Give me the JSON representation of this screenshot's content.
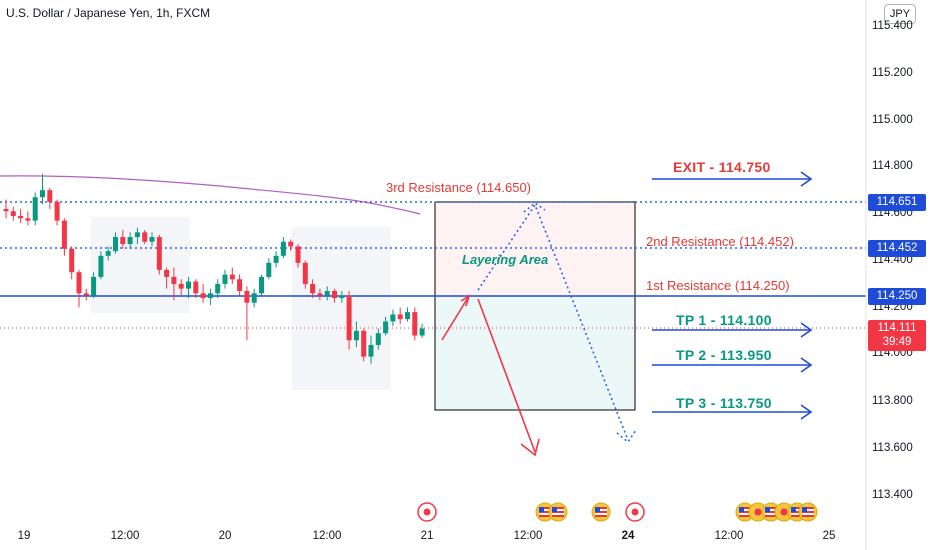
{
  "header": {
    "title": "U.S. Dollar / Japanese Yen, 1h, FXCM",
    "currency": "JPY"
  },
  "y_axis": {
    "labels": [
      "115.400",
      "115.200",
      "115.000",
      "114.800",
      "114.600",
      "114.400",
      "114.200",
      "114.000",
      "113.800",
      "113.600",
      "113.400"
    ]
  },
  "x_axis": {
    "labels": [
      {
        "text": "19",
        "bold": false
      },
      {
        "text": "12:00",
        "bold": false
      },
      {
        "text": "20",
        "bold": false
      },
      {
        "text": "12:00",
        "bold": false
      },
      {
        "text": "21",
        "bold": false
      },
      {
        "text": "12:00",
        "bold": false
      },
      {
        "text": "24",
        "bold": true
      },
      {
        "text": "12:00",
        "bold": false
      },
      {
        "text": "25",
        "bold": false
      }
    ]
  },
  "price_labels": {
    "r3": "114.651",
    "r2": "114.452",
    "r1": "114.250",
    "current": "114.111",
    "countdown": "39:49"
  },
  "annotations": {
    "exit": "EXIT - 114.750",
    "res3": "3rd Resistance (114.650)",
    "res2": "2nd Resistance (114.452)",
    "res1": "1st Resistance (114.250)",
    "layering": "Layering Area",
    "tp1": "TP 1 - 114.100",
    "tp2": "TP 2 - 113.950",
    "tp3": "TP 3 - 113.750"
  },
  "colors": {
    "up": "#089981",
    "down": "#f23645",
    "ma": "#9c27b0",
    "line": "#2962ff",
    "price": "#f23645"
  },
  "chart_data": {
    "type": "candlestick",
    "title": "U.S. Dollar / Japanese Yen, 1h, FXCM",
    "ylim": [
      113.3,
      115.45
    ],
    "levels": {
      "res3": 114.65,
      "res2": 114.452,
      "res1": 114.25,
      "current": 114.111,
      "exit": 114.75,
      "tp1": 114.1,
      "tp2": 113.95,
      "tp3": 113.75
    },
    "candles": [
      {
        "o": 114.62,
        "h": 114.66,
        "l": 114.58,
        "c": 114.61
      },
      {
        "o": 114.61,
        "h": 114.63,
        "l": 114.57,
        "c": 114.59
      },
      {
        "o": 114.59,
        "h": 114.62,
        "l": 114.56,
        "c": 114.58
      },
      {
        "o": 114.58,
        "h": 114.61,
        "l": 114.55,
        "c": 114.57
      },
      {
        "o": 114.57,
        "h": 114.69,
        "l": 114.55,
        "c": 114.67
      },
      {
        "o": 114.67,
        "h": 114.77,
        "l": 114.64,
        "c": 114.7
      },
      {
        "o": 114.7,
        "h": 114.71,
        "l": 114.62,
        "c": 114.65
      },
      {
        "o": 114.65,
        "h": 114.66,
        "l": 114.55,
        "c": 114.57
      },
      {
        "o": 114.57,
        "h": 114.58,
        "l": 114.42,
        "c": 114.45
      },
      {
        "o": 114.45,
        "h": 114.46,
        "l": 114.32,
        "c": 114.35
      },
      {
        "o": 114.35,
        "h": 114.36,
        "l": 114.2,
        "c": 114.26
      },
      {
        "o": 114.26,
        "h": 114.28,
        "l": 114.23,
        "c": 114.25
      },
      {
        "o": 114.25,
        "h": 114.35,
        "l": 114.24,
        "c": 114.33
      },
      {
        "o": 114.33,
        "h": 114.44,
        "l": 114.32,
        "c": 114.42
      },
      {
        "o": 114.42,
        "h": 114.46,
        "l": 114.4,
        "c": 114.44
      },
      {
        "o": 114.44,
        "h": 114.52,
        "l": 114.43,
        "c": 114.5
      },
      {
        "o": 114.5,
        "h": 114.53,
        "l": 114.45,
        "c": 114.47
      },
      {
        "o": 114.47,
        "h": 114.52,
        "l": 114.45,
        "c": 114.5
      },
      {
        "o": 114.5,
        "h": 114.54,
        "l": 114.47,
        "c": 114.52
      },
      {
        "o": 114.52,
        "h": 114.53,
        "l": 114.47,
        "c": 114.48
      },
      {
        "o": 114.48,
        "h": 114.52,
        "l": 114.46,
        "c": 114.5
      },
      {
        "o": 114.5,
        "h": 114.51,
        "l": 114.34,
        "c": 114.36
      },
      {
        "o": 114.36,
        "h": 114.37,
        "l": 114.28,
        "c": 114.33
      },
      {
        "o": 114.33,
        "h": 114.37,
        "l": 114.23,
        "c": 114.3
      },
      {
        "o": 114.3,
        "h": 114.32,
        "l": 114.25,
        "c": 114.28
      },
      {
        "o": 114.28,
        "h": 114.33,
        "l": 114.24,
        "c": 114.31
      },
      {
        "o": 114.31,
        "h": 114.32,
        "l": 114.24,
        "c": 114.26
      },
      {
        "o": 114.26,
        "h": 114.3,
        "l": 114.22,
        "c": 114.24
      },
      {
        "o": 114.24,
        "h": 114.28,
        "l": 114.21,
        "c": 114.26
      },
      {
        "o": 114.26,
        "h": 114.32,
        "l": 114.24,
        "c": 114.3
      },
      {
        "o": 114.3,
        "h": 114.36,
        "l": 114.28,
        "c": 114.34
      },
      {
        "o": 114.34,
        "h": 114.37,
        "l": 114.3,
        "c": 114.32
      },
      {
        "o": 114.32,
        "h": 114.34,
        "l": 114.25,
        "c": 114.27
      },
      {
        "o": 114.27,
        "h": 114.29,
        "l": 114.06,
        "c": 114.22
      },
      {
        "o": 114.22,
        "h": 114.28,
        "l": 114.2,
        "c": 114.26
      },
      {
        "o": 114.26,
        "h": 114.34,
        "l": 114.25,
        "c": 114.33
      },
      {
        "o": 114.33,
        "h": 114.41,
        "l": 114.32,
        "c": 114.39
      },
      {
        "o": 114.39,
        "h": 114.44,
        "l": 114.37,
        "c": 114.42
      },
      {
        "o": 114.42,
        "h": 114.5,
        "l": 114.41,
        "c": 114.48
      },
      {
        "o": 114.48,
        "h": 114.49,
        "l": 114.44,
        "c": 114.46
      },
      {
        "o": 114.46,
        "h": 114.47,
        "l": 114.37,
        "c": 114.39
      },
      {
        "o": 114.39,
        "h": 114.4,
        "l": 114.28,
        "c": 114.3
      },
      {
        "o": 114.3,
        "h": 114.32,
        "l": 114.24,
        "c": 114.26
      },
      {
        "o": 114.26,
        "h": 114.28,
        "l": 114.23,
        "c": 114.25
      },
      {
        "o": 114.25,
        "h": 114.29,
        "l": 114.23,
        "c": 114.27
      },
      {
        "o": 114.27,
        "h": 114.28,
        "l": 114.22,
        "c": 114.24
      },
      {
        "o": 114.24,
        "h": 114.27,
        "l": 114.22,
        "c": 114.25
      },
      {
        "o": 114.25,
        "h": 114.27,
        "l": 114.02,
        "c": 114.06
      },
      {
        "o": 114.06,
        "h": 114.14,
        "l": 114.03,
        "c": 114.1
      },
      {
        "o": 114.1,
        "h": 114.11,
        "l": 113.97,
        "c": 113.99
      },
      {
        "o": 113.99,
        "h": 114.08,
        "l": 113.96,
        "c": 114.04
      },
      {
        "o": 114.04,
        "h": 114.11,
        "l": 114.02,
        "c": 114.09
      },
      {
        "o": 114.09,
        "h": 114.16,
        "l": 114.08,
        "c": 114.14
      },
      {
        "o": 114.14,
        "h": 114.19,
        "l": 114.12,
        "c": 114.17
      },
      {
        "o": 114.17,
        "h": 114.2,
        "l": 114.13,
        "c": 114.15
      },
      {
        "o": 114.15,
        "h": 114.2,
        "l": 114.14,
        "c": 114.18
      },
      {
        "o": 114.18,
        "h": 114.2,
        "l": 114.06,
        "c": 114.08
      },
      {
        "o": 114.08,
        "h": 114.13,
        "l": 114.07,
        "c": 114.11
      }
    ]
  }
}
